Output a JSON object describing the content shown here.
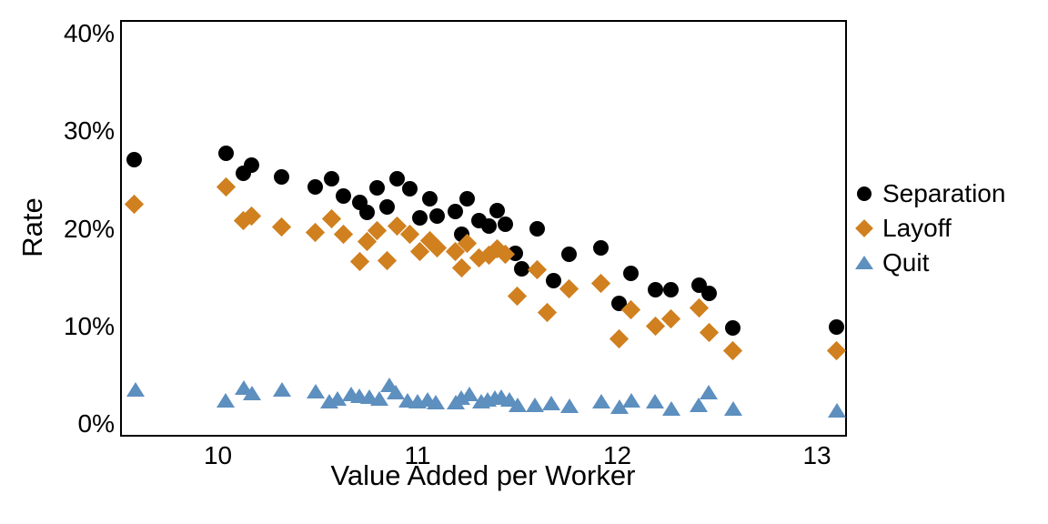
{
  "figure": {
    "background": "#ffffff",
    "y_axis": {
      "title": "Rate",
      "tick_labels": [
        "0%",
        "10%",
        "20%",
        "30%",
        "40%"
      ],
      "tick_values": [
        0,
        10,
        20,
        30,
        40
      ]
    },
    "x_axis": {
      "title": "Value Added per Worker",
      "tick_labels": [
        "10",
        "11",
        "12",
        "13"
      ],
      "tick_values": [
        10,
        11,
        12,
        13
      ]
    },
    "legend": {
      "position": "right-outside",
      "items": [
        {
          "label": "Separation",
          "marker": "circle",
          "color": "#000000"
        },
        {
          "label": "Layoff",
          "marker": "diamond",
          "color": "#D0801F"
        },
        {
          "label": "Quit",
          "marker": "triangle",
          "color": "#5D8FBF"
        }
      ]
    }
  },
  "chart_data": {
    "type": "scatter",
    "title": "",
    "xlabel": "Value Added per Worker",
    "ylabel": "Rate",
    "xlim": [
      9.51,
      13.15
    ],
    "ylim": [
      -1.3,
      41.4
    ],
    "y_unit": "%",
    "grid": false,
    "legend_position": "right",
    "series": [
      {
        "name": "Separation",
        "marker": "circle",
        "color": "#000000",
        "points": [
          [
            9.57,
            27.3
          ],
          [
            10.03,
            27.9
          ],
          [
            10.12,
            25.9
          ],
          [
            10.16,
            26.7
          ],
          [
            10.31,
            25.5
          ],
          [
            10.48,
            24.5
          ],
          [
            10.56,
            25.3
          ],
          [
            10.62,
            23.5
          ],
          [
            10.7,
            22.9
          ],
          [
            10.74,
            21.9
          ],
          [
            10.79,
            24.4
          ],
          [
            10.84,
            22.4
          ],
          [
            10.89,
            25.3
          ],
          [
            10.95,
            24.3
          ],
          [
            11.0,
            21.3
          ],
          [
            11.05,
            23.3
          ],
          [
            11.09,
            21.5
          ],
          [
            11.18,
            22.0
          ],
          [
            11.21,
            19.6
          ],
          [
            11.24,
            23.3
          ],
          [
            11.3,
            21.0
          ],
          [
            11.35,
            20.5
          ],
          [
            11.39,
            22.1
          ],
          [
            11.43,
            20.7
          ],
          [
            11.48,
            17.7
          ],
          [
            11.51,
            16.1
          ],
          [
            11.59,
            20.2
          ],
          [
            11.67,
            14.9
          ],
          [
            11.75,
            17.6
          ],
          [
            11.91,
            18.2
          ],
          [
            12.0,
            12.5
          ],
          [
            12.06,
            15.6
          ],
          [
            12.18,
            13.9
          ],
          [
            12.26,
            13.9
          ],
          [
            12.4,
            14.4
          ],
          [
            12.45,
            13.6
          ],
          [
            12.57,
            10.0
          ],
          [
            13.09,
            10.1
          ]
        ]
      },
      {
        "name": "Layoff",
        "marker": "diamond",
        "color": "#D0801F",
        "points": [
          [
            9.57,
            22.7
          ],
          [
            10.03,
            24.5
          ],
          [
            10.12,
            21.0
          ],
          [
            10.16,
            21.5
          ],
          [
            10.31,
            20.4
          ],
          [
            10.48,
            19.8
          ],
          [
            10.56,
            21.2
          ],
          [
            10.62,
            19.6
          ],
          [
            10.7,
            16.8
          ],
          [
            10.74,
            18.9
          ],
          [
            10.79,
            20.0
          ],
          [
            10.84,
            16.9
          ],
          [
            10.89,
            20.5
          ],
          [
            10.95,
            19.6
          ],
          [
            11.0,
            17.9
          ],
          [
            11.05,
            19.0
          ],
          [
            11.09,
            18.2
          ],
          [
            11.18,
            17.9
          ],
          [
            11.21,
            16.2
          ],
          [
            11.24,
            18.7
          ],
          [
            11.3,
            17.2
          ],
          [
            11.35,
            17.5
          ],
          [
            11.39,
            18.1
          ],
          [
            11.43,
            17.6
          ],
          [
            11.49,
            13.3
          ],
          [
            11.59,
            16.0
          ],
          [
            11.64,
            11.6
          ],
          [
            11.75,
            14.0
          ],
          [
            11.91,
            14.6
          ],
          [
            12.0,
            8.9
          ],
          [
            12.06,
            11.9
          ],
          [
            12.18,
            10.2
          ],
          [
            12.26,
            11.0
          ],
          [
            12.4,
            12.1
          ],
          [
            12.45,
            9.6
          ],
          [
            12.57,
            7.7
          ],
          [
            13.09,
            7.7
          ]
        ]
      },
      {
        "name": "Quit",
        "marker": "triangle",
        "color": "#5D8FBF",
        "points": [
          [
            9.58,
            3.6
          ],
          [
            10.03,
            2.5
          ],
          [
            10.12,
            3.8
          ],
          [
            10.16,
            3.3
          ],
          [
            10.31,
            3.6
          ],
          [
            10.48,
            3.5
          ],
          [
            10.55,
            2.4
          ],
          [
            10.59,
            2.7
          ],
          [
            10.66,
            3.2
          ],
          [
            10.7,
            3.0
          ],
          [
            10.75,
            2.9
          ],
          [
            10.8,
            2.7
          ],
          [
            10.85,
            4.1
          ],
          [
            10.88,
            3.4
          ],
          [
            10.94,
            2.5
          ],
          [
            10.99,
            2.4
          ],
          [
            11.04,
            2.6
          ],
          [
            11.08,
            2.3
          ],
          [
            11.18,
            2.3
          ],
          [
            11.21,
            2.8
          ],
          [
            11.25,
            3.2
          ],
          [
            11.31,
            2.4
          ],
          [
            11.34,
            2.6
          ],
          [
            11.38,
            2.8
          ],
          [
            11.41,
            2.9
          ],
          [
            11.45,
            2.6
          ],
          [
            11.49,
            2.1
          ],
          [
            11.58,
            2.1
          ],
          [
            11.66,
            2.2
          ],
          [
            11.75,
            2.0
          ],
          [
            11.91,
            2.4
          ],
          [
            12.0,
            1.9
          ],
          [
            12.06,
            2.5
          ],
          [
            12.18,
            2.4
          ],
          [
            12.26,
            1.7
          ],
          [
            12.4,
            2.1
          ],
          [
            12.45,
            3.4
          ],
          [
            12.57,
            1.7
          ],
          [
            13.09,
            1.5
          ]
        ]
      }
    ]
  }
}
